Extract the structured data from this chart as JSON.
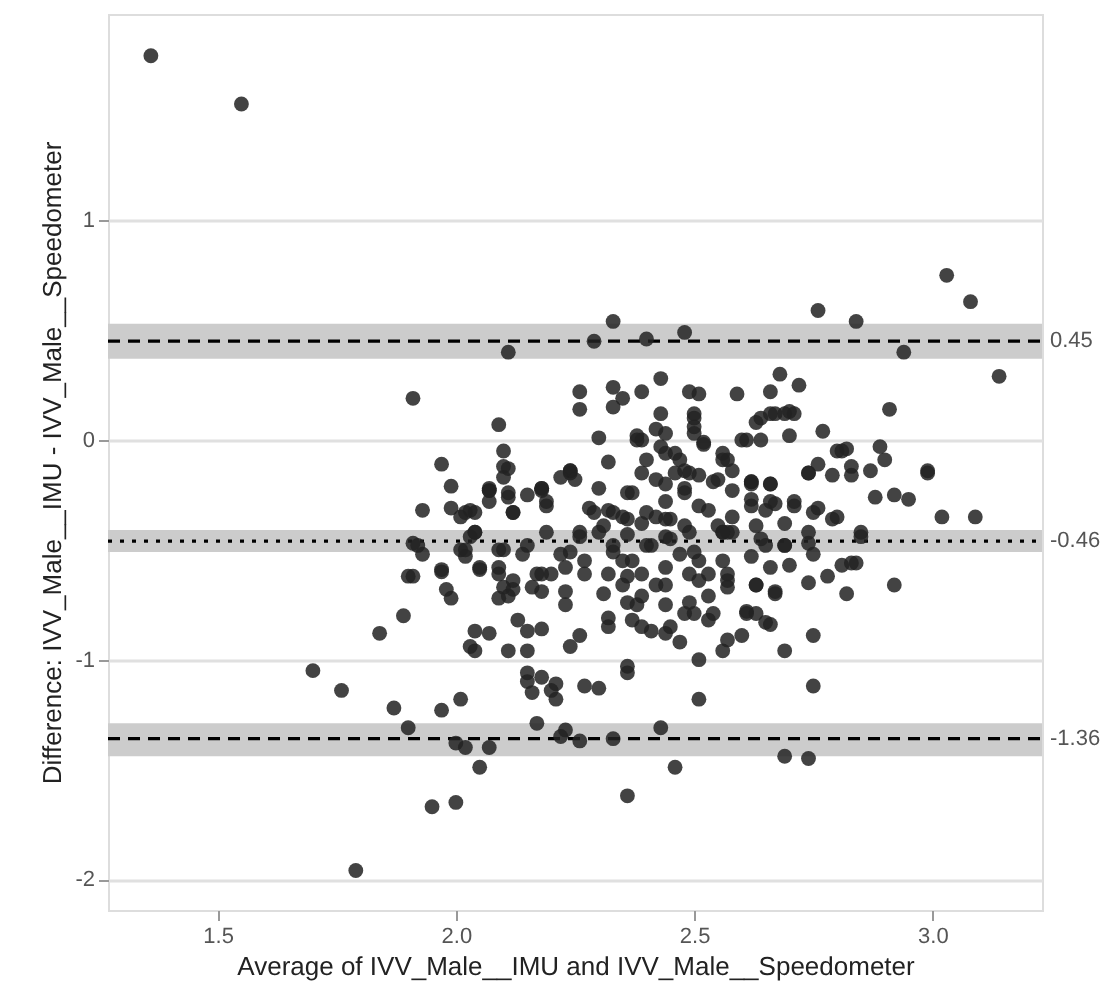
{
  "chart_data": {
    "type": "scatter",
    "xlabel": "Average of IVV_Male__IMU and IVV_Male__Speedometer",
    "ylabel": "Difference: IVV_Male__IMU - IVV_Male__Speedometer",
    "xlim": [
      1.27,
      3.23
    ],
    "ylim": [
      -2.14,
      1.94
    ],
    "xticks": [
      1.5,
      {
        "value": 2,
        "label": "2.0"
      },
      2.5,
      {
        "value": 3,
        "label": "3.0"
      }
    ],
    "yticks": [
      -2,
      -1,
      0,
      1
    ],
    "grid": "y",
    "marker": "circle",
    "series": [
      {
        "color": "#222222",
        "x": [
          1.36,
          1.55,
          1.91,
          2.11,
          2.29,
          2.33,
          2.4,
          2.48,
          2.76,
          2.84,
          2.94,
          3.03,
          3.08,
          3.14,
          2.43,
          2.68,
          2.72,
          2.26,
          2.33,
          2.39,
          2.51,
          2.59,
          2.66,
          2.26,
          2.33,
          2.35,
          2.43,
          2.5,
          2.5,
          2.7,
          2.63,
          2.77,
          2.7,
          2.91,
          2.09,
          2.3,
          2.38,
          2.61,
          2.64,
          2.52,
          2.89,
          1.97,
          1.99,
          2.07,
          2.1,
          2.11,
          2.18,
          2.24,
          2.32,
          2.57,
          2.62,
          2.66,
          2.74,
          2.8,
          2.82,
          2.83,
          2.9,
          2.99,
          2.87,
          1.93,
          1.99,
          1.91,
          1.93,
          1.9,
          1.97,
          1.99,
          1.89,
          1.84,
          1.7,
          1.76,
          1.87,
          1.97,
          2.01,
          1.9,
          2.0,
          2.02,
          2.07,
          2.05,
          1.95,
          2.0,
          1.79,
          2.36,
          2.46,
          2.43,
          2.33,
          2.26,
          2.22,
          2.23,
          2.17,
          2.21,
          2.27,
          2.3,
          2.36,
          2.36,
          2.51,
          2.51,
          2.69,
          2.74,
          2.75,
          2.69,
          2.75,
          2.66,
          2.82,
          2.92,
          2.84,
          2.81,
          2.85,
          2.78,
          2.74,
          3.02,
          3.09,
          2.99,
          2.95,
          2.92,
          2.88,
          2.8,
          2.74,
          2.69,
          2.7,
          2.67,
          2.63,
          2.61,
          2.6,
          2.56,
          2.57,
          2.47,
          2.44,
          2.41,
          2.37,
          2.32,
          2.26,
          2.24,
          2.18,
          2.15,
          2.11,
          2.15,
          2.04,
          2.03,
          2.07,
          2.04,
          2.15,
          2.15,
          2.18,
          2.2,
          2.16,
          2.21,
          2.11,
          2.12,
          2.17,
          2.18,
          2.23,
          2.23,
          2.13,
          2.09,
          2.1,
          2.1,
          2.15,
          2.05,
          2.02,
          2.04,
          2.04,
          2.03,
          2.07,
          2.11,
          2.12,
          2.19,
          2.19,
          2.24,
          2.24,
          2.3,
          2.28,
          2.32,
          2.35,
          2.31,
          2.36,
          2.33,
          2.32,
          2.36,
          2.31,
          2.39,
          2.38,
          2.42,
          2.44,
          2.41,
          2.45,
          2.45,
          2.44,
          2.48,
          2.49,
          2.54,
          2.53,
          2.49,
          2.5,
          2.49,
          2.53,
          2.49,
          2.5,
          2.53,
          2.54,
          2.57,
          2.56,
          2.57,
          2.58,
          2.62,
          2.62,
          2.66,
          2.71,
          2.76,
          2.74,
          2.64,
          2.62,
          2.66,
          2.56,
          2.57,
          2.61,
          2.45,
          2.39,
          2.35,
          2.27,
          2.26,
          2.23,
          2.27,
          2.2,
          2.09,
          2.01,
          2.03,
          2.15,
          2.18,
          2.1,
          2.01,
          2.39,
          2.42,
          2.69,
          2.81,
          2.83,
          2.76,
          2.74,
          2.79,
          2.85,
          2.83,
          2.65,
          2.66,
          2.62,
          2.6,
          2.64,
          2.66,
          2.67,
          2.69,
          2.71,
          2.49,
          2.5,
          2.5,
          2.52,
          2.44,
          2.42,
          2.39,
          2.43,
          2.46,
          2.47,
          2.48,
          2.51,
          2.56,
          2.58,
          2.55,
          2.58,
          2.62,
          2.67,
          2.71,
          2.75,
          2.79,
          2.75,
          2.69,
          2.65,
          2.63,
          2.58,
          2.55,
          2.51,
          2.48,
          2.44,
          2.42,
          2.39,
          2.36,
          2.33,
          2.36,
          2.4,
          2.44,
          2.48,
          2.44,
          2.4,
          2.47,
          2.51,
          2.56,
          2.57,
          2.51,
          2.44,
          2.39,
          2.35,
          2.36,
          2.44,
          2.48,
          2.53,
          2.63,
          2.65,
          2.67,
          2.63,
          2.32,
          2.1,
          2.07,
          2.07,
          2.11,
          2.12,
          2.18,
          2.19,
          2.24,
          2.25,
          2.22,
          2.02,
          2.04,
          2.02,
          1.92,
          1.91,
          1.97,
          1.98,
          2.05,
          2.09,
          2.09,
          2.14,
          2.18,
          2.22,
          2.26,
          2.29,
          2.3,
          2.37,
          2.38,
          2.4,
          2.44,
          2.46,
          2.56,
          2.33,
          2.37,
          2.16,
          2.12
        ],
        "values": [
          1.75,
          1.53,
          0.19,
          0.4,
          0.45,
          0.54,
          0.46,
          0.49,
          0.59,
          0.54,
          0.4,
          0.75,
          0.63,
          0.29,
          0.28,
          0.3,
          0.25,
          0.22,
          0.24,
          0.22,
          0.21,
          0.21,
          0.22,
          0.14,
          0.15,
          0.19,
          0.12,
          0.12,
          0.06,
          0.13,
          0.08,
          0.04,
          0.02,
          0.14,
          0.07,
          0.01,
          0.02,
          0.0,
          0.0,
          -0.01,
          -0.03,
          -0.11,
          -0.21,
          -0.22,
          -0.05,
          -0.13,
          -0.22,
          -0.14,
          -0.1,
          -0.09,
          -0.19,
          -0.2,
          -0.15,
          -0.05,
          -0.04,
          -0.16,
          -0.09,
          -0.14,
          -0.14,
          -0.32,
          -0.31,
          -0.47,
          -0.52,
          -0.62,
          -0.6,
          -0.72,
          -0.8,
          -0.88,
          -1.05,
          -1.14,
          -1.22,
          -1.23,
          -1.18,
          -1.31,
          -1.38,
          -1.4,
          -1.4,
          -1.49,
          -1.67,
          -1.65,
          -1.96,
          -1.62,
          -1.49,
          -1.31,
          -1.36,
          -1.37,
          -1.35,
          -1.32,
          -1.29,
          -1.18,
          -1.12,
          -1.13,
          -1.03,
          -1.06,
          -1.18,
          -1.0,
          -1.44,
          -1.45,
          -1.12,
          -0.96,
          -0.89,
          -0.84,
          -0.7,
          -0.66,
          -0.56,
          -0.57,
          -0.44,
          -0.62,
          -0.65,
          -0.35,
          -0.35,
          -0.15,
          -0.27,
          -0.25,
          -0.26,
          -0.35,
          -0.47,
          -0.48,
          -0.57,
          -0.69,
          -0.66,
          -0.78,
          -0.89,
          -0.96,
          -0.91,
          -0.92,
          -0.88,
          -0.87,
          -0.82,
          -0.81,
          -0.89,
          -0.94,
          -0.86,
          -0.87,
          -0.96,
          -0.96,
          -0.96,
          -0.94,
          -0.88,
          -0.87,
          -1.06,
          -1.1,
          -1.08,
          -1.14,
          -1.15,
          -1.11,
          -0.71,
          -0.64,
          -0.61,
          -0.69,
          -0.69,
          -0.75,
          -0.82,
          -0.72,
          -0.67,
          -0.5,
          -0.48,
          -0.58,
          -0.53,
          -0.42,
          -0.33,
          -0.44,
          -0.23,
          -0.24,
          -0.33,
          -0.28,
          -0.42,
          -0.51,
          -0.15,
          -0.22,
          -0.31,
          -0.32,
          -0.35,
          -0.39,
          -0.43,
          -0.51,
          -0.61,
          -0.62,
          -0.7,
          -0.71,
          -0.75,
          -0.66,
          -0.58,
          -0.48,
          -0.45,
          -0.36,
          -0.28,
          -0.22,
          -0.15,
          -0.19,
          -0.32,
          -0.42,
          -0.51,
          -0.61,
          -0.61,
          -0.74,
          -0.79,
          -0.71,
          -0.79,
          -0.64,
          -0.42,
          -0.42,
          -0.35,
          -0.19,
          -0.3,
          -0.28,
          -0.28,
          -0.31,
          -0.42,
          -0.45,
          -0.53,
          -0.58,
          -0.55,
          -0.67,
          -0.79,
          -0.85,
          -0.85,
          -0.55,
          -0.55,
          -0.42,
          -0.58,
          -0.61,
          -0.61,
          -0.61,
          -0.35,
          -0.32,
          -0.25,
          -0.22,
          -0.12,
          -0.5,
          -0.38,
          -0.35,
          -0.38,
          -0.05,
          -0.12,
          -0.11,
          -0.15,
          -0.16,
          -0.42,
          -0.56,
          -0.32,
          -0.2,
          -0.2,
          0.0,
          0.1,
          0.12,
          0.12,
          0.12,
          0.12,
          0.22,
          0.1,
          0.03,
          -0.02,
          0.03,
          0.05,
          0.0,
          -0.03,
          -0.06,
          -0.09,
          -0.14,
          -0.16,
          -0.09,
          -0.14,
          -0.18,
          -0.23,
          -0.27,
          -0.29,
          -0.3,
          -0.33,
          -0.36,
          -0.52,
          -0.48,
          -0.48,
          -0.39,
          -0.42,
          -0.39,
          -0.3,
          -0.24,
          -0.2,
          -0.18,
          -0.15,
          -0.24,
          -0.33,
          -0.36,
          -0.33,
          -0.36,
          -0.39,
          -0.44,
          -0.48,
          -0.52,
          -0.55,
          -0.42,
          -0.61,
          -0.64,
          -0.66,
          -0.61,
          -0.66,
          -0.74,
          -0.75,
          -0.79,
          -0.82,
          -0.79,
          -0.83,
          -0.7,
          -0.66,
          -0.85,
          -0.17,
          -0.23,
          -0.28,
          -0.26,
          -0.33,
          -0.23,
          -0.3,
          -0.14,
          -0.18,
          -0.17,
          -0.33,
          -0.42,
          -0.5,
          -0.48,
          -0.62,
          -0.59,
          -0.68,
          -0.59,
          -0.5,
          -0.58,
          -0.52,
          -0.61,
          -0.52,
          -0.44,
          -0.33,
          -0.42,
          -0.24,
          0.0,
          -0.09,
          -0.06,
          -0.15,
          -0.06,
          -0.48,
          -0.55,
          -0.67,
          -0.68
        ]
      }
    ],
    "bands": [
      {
        "axis": "y",
        "from": 0.37,
        "to": 0.53,
        "color": "#cccccc"
      },
      {
        "axis": "y",
        "from": -0.51,
        "to": -0.41,
        "color": "#cccccc"
      },
      {
        "axis": "y",
        "from": -1.44,
        "to": -1.29,
        "color": "#cccccc"
      }
    ],
    "ref_lines": [
      {
        "axis": "y",
        "value": 0.45,
        "label": "0.45",
        "line_style": "dashed",
        "color": "#000000"
      },
      {
        "axis": "y",
        "value": -0.46,
        "label": "-0.46",
        "line_style": "dotted",
        "color": "#000000"
      },
      {
        "axis": "y",
        "value": -1.36,
        "label": "-1.36",
        "line_style": "dashed",
        "color": "#000000"
      }
    ]
  }
}
